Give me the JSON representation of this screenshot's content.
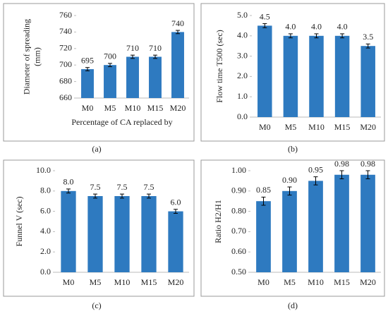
{
  "chart_data": [
    {
      "type": "bar",
      "panel_label": "(a)",
      "y_label": [
        "Diameter of spreading",
        "(mm)"
      ],
      "x_label": "Percentage of CA replaced by",
      "categories": [
        "M0",
        "M5",
        "M10",
        "M15",
        "M20"
      ],
      "values": [
        695,
        700,
        710,
        710,
        740
      ],
      "errors": [
        2,
        2,
        2,
        2,
        2
      ],
      "color": "#2e7ac0",
      "ylim": [
        660,
        760
      ],
      "yticks": [
        660,
        680,
        700,
        720,
        740,
        760
      ]
    },
    {
      "type": "bar",
      "panel_label": "(b)",
      "y_label": [
        "Flow time T500 (sec)"
      ],
      "categories": [
        "M0",
        "M5",
        "M10",
        "M15",
        "M20"
      ],
      "values": [
        4.5,
        4.0,
        4.0,
        4.0,
        3.5
      ],
      "value_labels": [
        "4.5",
        "4.0",
        "4.0",
        "4.0",
        "3.5"
      ],
      "errors": [
        0.1,
        0.1,
        0.1,
        0.1,
        0.1
      ],
      "color": "#2e7ac0",
      "ylim": [
        0,
        5
      ],
      "yticks": [
        {
          "value": 0,
          "label": "0.0"
        },
        {
          "value": 1,
          "label": "1.0"
        },
        {
          "value": 2,
          "label": "2.0"
        },
        {
          "value": 3,
          "label": "3.0"
        },
        {
          "value": 4,
          "label": "4.0"
        },
        {
          "value": 5,
          "label": "5.0"
        }
      ]
    },
    {
      "type": "bar",
      "panel_label": "(c)",
      "y_label": [
        "Funnel V (sec)"
      ],
      "categories": [
        "M0",
        "M5",
        "M10",
        "M15",
        "M20"
      ],
      "values": [
        8.0,
        7.5,
        7.5,
        7.5,
        6.0
      ],
      "value_labels": [
        "8.0",
        "7.5",
        "7.5",
        "7.5",
        "6.0"
      ],
      "errors": [
        0.2,
        0.2,
        0.2,
        0.2,
        0.2
      ],
      "color": "#2e7ac0",
      "ylim": [
        0,
        10
      ],
      "yticks": [
        {
          "value": 0,
          "label": "0.0"
        },
        {
          "value": 2,
          "label": "2.0"
        },
        {
          "value": 4,
          "label": "4.0"
        },
        {
          "value": 6,
          "label": "6.0"
        },
        {
          "value": 8,
          "label": "8.0"
        },
        {
          "value": 10,
          "label": "10.0"
        }
      ]
    },
    {
      "type": "bar",
      "panel_label": "(d)",
      "y_label": [
        "Ratio H2/H1"
      ],
      "categories": [
        "M0",
        "M5",
        "M10",
        "M15",
        "M20"
      ],
      "values": [
        0.85,
        0.9,
        0.95,
        0.98,
        0.98
      ],
      "value_labels": [
        "0.85",
        "0.90",
        "0.95",
        "0.98",
        "0.98"
      ],
      "errors": [
        0.02,
        0.02,
        0.02,
        0.02,
        0.02
      ],
      "color": "#2e7ac0",
      "ylim": [
        0.5,
        1.0
      ],
      "yticks": [
        {
          "value": 0.5,
          "label": "0.50"
        },
        {
          "value": 0.6,
          "label": "0.60"
        },
        {
          "value": 0.7,
          "label": "0.70"
        },
        {
          "value": 0.8,
          "label": "0.80"
        },
        {
          "value": 0.9,
          "label": "0.90"
        },
        {
          "value": 1.0,
          "label": "1.00"
        }
      ]
    }
  ]
}
